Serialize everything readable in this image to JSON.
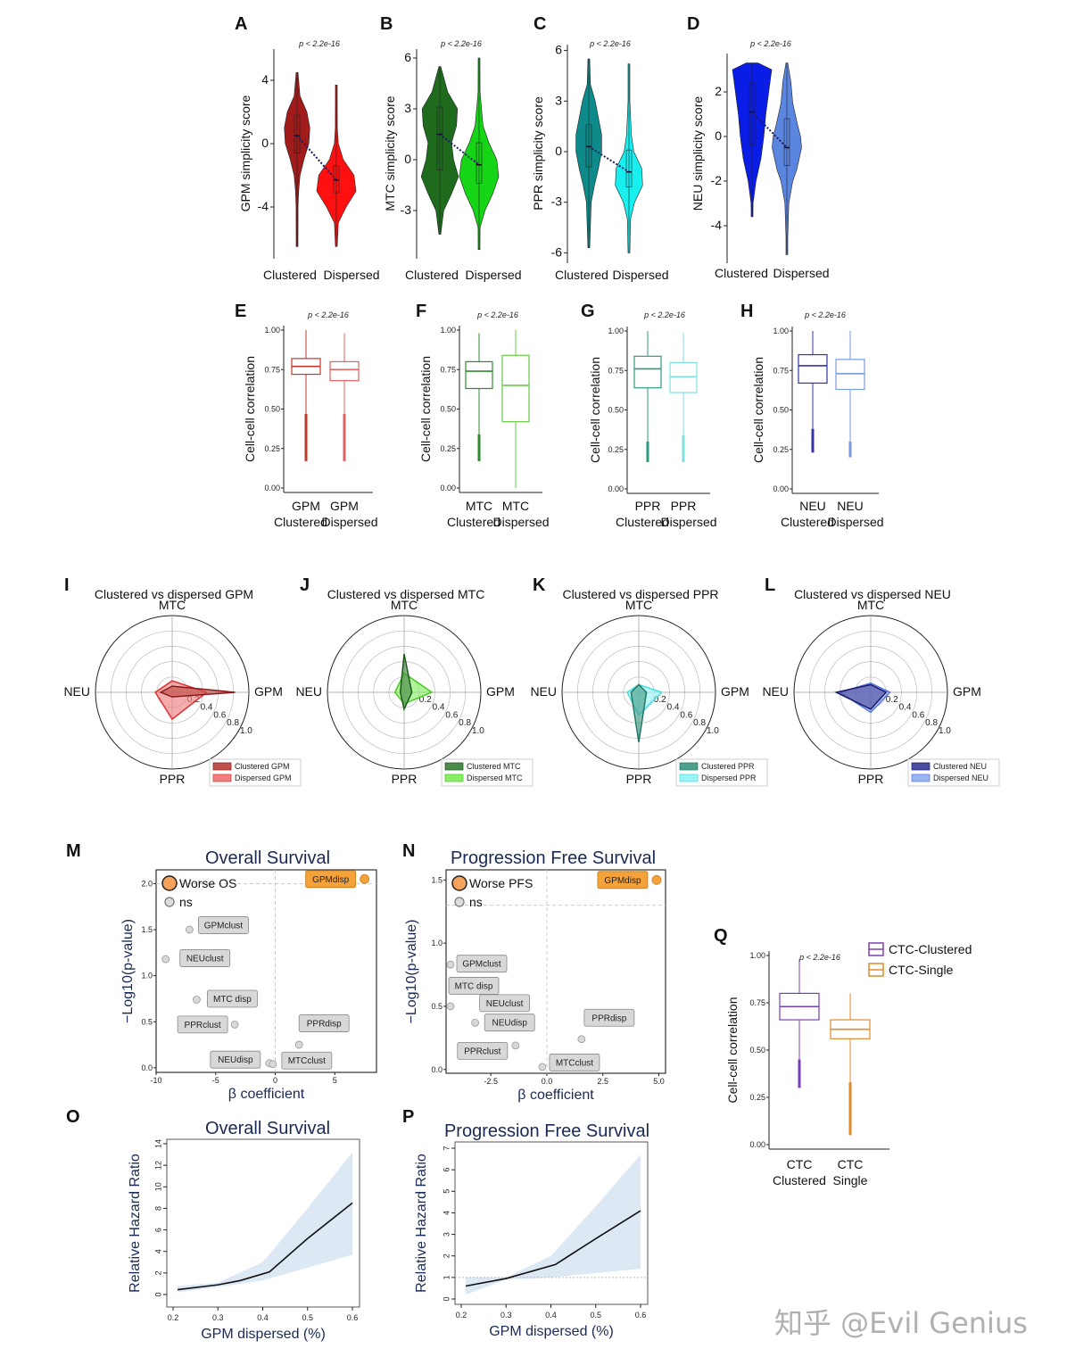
{
  "chart_data": [
    {
      "panel": "A",
      "type": "violin",
      "p_label": "p < 2.2e-16",
      "ylabel": "GPM simplicity score",
      "yticks": [
        4,
        0,
        -4
      ],
      "categories": [
        "Clustered",
        "Dispersed"
      ],
      "groups": [
        {
          "name": "Clustered",
          "color": "#a11b1b",
          "median": 0.5,
          "q1": -0.6,
          "q3": 1.8,
          "density": [
            [
              4.5,
              0
            ],
            [
              3,
              0.15
            ],
            [
              2,
              0.5
            ],
            [
              1,
              0.65
            ],
            [
              0,
              0.6
            ],
            [
              -1,
              0.35
            ],
            [
              -2,
              0.15
            ],
            [
              -3,
              0.08
            ],
            [
              -4,
              0.05
            ],
            [
              -6.5,
              0.02
            ]
          ]
        },
        {
          "name": "Dispersed",
          "color": "#ff1010",
          "median": -2.3,
          "q1": -3.1,
          "q3": -1.4,
          "density": [
            [
              3.7,
              0
            ],
            [
              1,
              0.05
            ],
            [
              0,
              0.1
            ],
            [
              -1,
              0.35
            ],
            [
              -2,
              0.9
            ],
            [
              -3,
              1.0
            ],
            [
              -4,
              0.5
            ],
            [
              -5,
              0.1
            ],
            [
              -6.5,
              0.02
            ]
          ]
        }
      ]
    },
    {
      "panel": "B",
      "type": "violin",
      "p_label": "p < 2.2e-16",
      "ylabel": "MTC simplicity score",
      "yticks": [
        6,
        3,
        0,
        -3
      ],
      "categories": [
        "Clustered",
        "Dispersed"
      ],
      "groups": [
        {
          "name": "Clustered",
          "color": "#1e6b1e",
          "median": 1.5,
          "q1": -0.6,
          "q3": 3.1,
          "density": [
            [
              5.5,
              0
            ],
            [
              4,
              0.4
            ],
            [
              3,
              0.9
            ],
            [
              2,
              0.85
            ],
            [
              1,
              0.6
            ],
            [
              0,
              0.7
            ],
            [
              -1,
              0.95
            ],
            [
              -2,
              0.6
            ],
            [
              -3,
              0.2
            ],
            [
              -4.4,
              0
            ]
          ]
        },
        {
          "name": "Dispersed",
          "color": "#16d416",
          "median": -0.3,
          "q1": -1.4,
          "q3": 1.0,
          "density": [
            [
              6,
              0
            ],
            [
              4,
              0.05
            ],
            [
              2,
              0.2
            ],
            [
              1,
              0.5
            ],
            [
              0,
              0.9
            ],
            [
              -1,
              1.0
            ],
            [
              -2,
              0.7
            ],
            [
              -3,
              0.3
            ],
            [
              -4,
              0.05
            ],
            [
              -5.3,
              0
            ]
          ]
        }
      ]
    },
    {
      "panel": "C",
      "type": "violin",
      "p_label": "p < 2.2e-16",
      "ylabel": "PPR simplicity score",
      "yticks": [
        6,
        3,
        0,
        -3,
        -6
      ],
      "categories": [
        "Clustered",
        "Dispersed"
      ],
      "groups": [
        {
          "name": "Clustered",
          "color": "#0e8a8a",
          "median": 0.3,
          "q1": -0.9,
          "q3": 1.6,
          "density": [
            [
              5.5,
              0
            ],
            [
              4,
              0.1
            ],
            [
              3,
              0.4
            ],
            [
              1,
              0.8
            ],
            [
              0,
              0.8
            ],
            [
              -1,
              0.6
            ],
            [
              -2,
              0.35
            ],
            [
              -3,
              0.15
            ],
            [
              -5.7,
              0.02
            ]
          ]
        },
        {
          "name": "Dispersed",
          "color": "#18f0f0",
          "median": -1.2,
          "q1": -2.1,
          "q3": 0.1,
          "density": [
            [
              5.2,
              0
            ],
            [
              3,
              0.05
            ],
            [
              1,
              0.15
            ],
            [
              0,
              0.3
            ],
            [
              -1,
              0.8
            ],
            [
              -2,
              0.85
            ],
            [
              -3,
              0.35
            ],
            [
              -4,
              0.1
            ],
            [
              -6,
              0.02
            ]
          ]
        }
      ]
    },
    {
      "panel": "D",
      "type": "violin",
      "p_label": "p < 2.2e-16",
      "ylabel": "NEU simplicity score",
      "yticks": [
        2,
        0,
        -2,
        -4
      ],
      "categories": [
        "Clustered",
        "Dispersed"
      ],
      "groups": [
        {
          "name": "Clustered",
          "color": "#0a1de6",
          "median": 1.1,
          "q1": -0.4,
          "q3": 2.4,
          "density": [
            [
              3.3,
              0.3
            ],
            [
              3,
              1.0
            ],
            [
              2,
              0.85
            ],
            [
              1,
              0.7
            ],
            [
              0,
              0.6
            ],
            [
              -1,
              0.45
            ],
            [
              -2,
              0.2
            ],
            [
              -3,
              0.05
            ],
            [
              -3.6,
              0
            ]
          ]
        },
        {
          "name": "Dispersed",
          "color": "#5b86e0",
          "median": -0.5,
          "q1": -1.3,
          "q3": 0.8,
          "density": [
            [
              3.3,
              0
            ],
            [
              2.5,
              0.2
            ],
            [
              1.5,
              0.3
            ],
            [
              0.5,
              0.55
            ],
            [
              0,
              0.7
            ],
            [
              -0.5,
              0.75
            ],
            [
              -1.5,
              0.5
            ],
            [
              -2,
              0.3
            ],
            [
              -3,
              0.1
            ],
            [
              -4.5,
              0.03
            ],
            [
              -5.3,
              0
            ]
          ]
        }
      ]
    },
    {
      "panel": "E",
      "type": "box",
      "p_label": "p < 2.2e-16",
      "ylabel": "Cell-cell correlation",
      "yticks": [
        "1.00",
        "0.75",
        "0.50",
        "0.25",
        "0.00"
      ],
      "ylim": [
        0,
        1
      ],
      "xlabels": [
        "GPM",
        "GPM"
      ],
      "xsub": [
        "Clustered",
        "Dispersed"
      ],
      "boxes": [
        {
          "color": "#c0392b",
          "q1": 0.72,
          "median": 0.77,
          "q3": 0.82,
          "lo": 0.47,
          "hi": 1.0,
          "outlier_min": 0.17
        },
        {
          "color": "#e06060",
          "q1": 0.68,
          "median": 0.75,
          "q3": 0.8,
          "lo": 0.47,
          "hi": 0.98,
          "outlier_min": 0.17
        }
      ]
    },
    {
      "panel": "F",
      "type": "box",
      "p_label": "p < 2.2e-16",
      "ylabel": "Cell-cell correlation",
      "yticks": [
        "1.00",
        "0.75",
        "0.50",
        "0.25",
        "0.00"
      ],
      "ylim": [
        0,
        1
      ],
      "xlabels": [
        "MTC",
        "MTC"
      ],
      "xsub": [
        "Clustered",
        "Dispersed"
      ],
      "boxes": [
        {
          "color": "#2e8b2e",
          "q1": 0.63,
          "median": 0.74,
          "q3": 0.8,
          "lo": 0.34,
          "hi": 0.98,
          "outlier_min": 0.17
        },
        {
          "color": "#66cc44",
          "q1": 0.42,
          "median": 0.65,
          "q3": 0.84,
          "lo": 0.0,
          "hi": 1.0,
          "outlier_min": null
        }
      ]
    },
    {
      "panel": "G",
      "type": "box",
      "p_label": "p < 2.2e-16",
      "ylabel": "Cell-cell correlation",
      "yticks": [
        "1.00",
        "0.75",
        "0.50",
        "0.25",
        "0.00"
      ],
      "ylim": [
        0,
        1
      ],
      "xlabels": [
        "PPR",
        "PPR"
      ],
      "xsub": [
        "Clustered",
        "Dispersed"
      ],
      "boxes": [
        {
          "color": "#2e9a80",
          "q1": 0.64,
          "median": 0.76,
          "q3": 0.84,
          "lo": 0.3,
          "hi": 1.0,
          "outlier_min": 0.17
        },
        {
          "color": "#7fe0e0",
          "q1": 0.61,
          "median": 0.71,
          "q3": 0.8,
          "lo": 0.34,
          "hi": 0.99,
          "outlier_min": 0.17
        }
      ]
    },
    {
      "panel": "H",
      "type": "box",
      "p_label": "p < 2.2e-16",
      "ylabel": "Cell-cell correlation",
      "yticks": [
        "1.00",
        "0.75",
        "0.50",
        "0.25",
        "0.00"
      ],
      "ylim": [
        0,
        1
      ],
      "xlabels": [
        "NEU",
        "NEU"
      ],
      "xsub": [
        "Clustered",
        "Dispersed"
      ],
      "boxes": [
        {
          "color": "#3333aa",
          "q1": 0.67,
          "median": 0.78,
          "q3": 0.85,
          "lo": 0.38,
          "hi": 1.0,
          "outlier_min": 0.23
        },
        {
          "color": "#7a9ae0",
          "q1": 0.63,
          "median": 0.73,
          "q3": 0.82,
          "lo": 0.3,
          "hi": 1.0,
          "outlier_min": 0.2
        }
      ]
    },
    {
      "panel": "I",
      "type": "radar",
      "title": "Clustered vs dispersed GPM",
      "axes": [
        "MTC",
        "GPM",
        "PPR",
        "NEU"
      ],
      "rings": [
        "0.2",
        "0.4",
        "0.6",
        "0.8",
        "1.0"
      ],
      "series": [
        {
          "name": "Clustered GPM",
          "color": "#8b1a1a",
          "fill": "#c0504d",
          "values": [
            0.08,
            0.82,
            0.06,
            0.15
          ]
        },
        {
          "name": "Dispersed GPM",
          "color": "#e03030",
          "fill": "#f08080",
          "values": [
            0.15,
            0.45,
            0.35,
            0.22
          ]
        }
      ]
    },
    {
      "panel": "J",
      "type": "radar",
      "title": "Clustered vs dispersed MTC",
      "axes": [
        "MTC",
        "GPM",
        "PPR",
        "NEU"
      ],
      "rings": [
        "0.2",
        "0.4",
        "0.6",
        "0.8",
        "1.0"
      ],
      "series": [
        {
          "name": "Clustered MTC",
          "color": "#1e5a1e",
          "fill": "#4a8a4a",
          "values": [
            0.5,
            0.1,
            0.22,
            0.05
          ]
        },
        {
          "name": "Dispersed MTC",
          "color": "#44cc22",
          "fill": "#88ee66",
          "values": [
            0.25,
            0.36,
            0.15,
            0.12
          ]
        }
      ]
    },
    {
      "panel": "K",
      "type": "radar",
      "title": "Clustered vs dispersed PPR",
      "axes": [
        "MTC",
        "GPM",
        "PPR",
        "NEU"
      ],
      "rings": [
        "0.2",
        "0.4",
        "0.6",
        "0.8",
        "1.0"
      ],
      "series": [
        {
          "name": "Clustered PPR",
          "color": "#1f7a6a",
          "fill": "#4aa08a",
          "values": [
            0.1,
            0.1,
            0.65,
            0.1
          ]
        },
        {
          "name": "Dispersed PPR",
          "color": "#44dddd",
          "fill": "#99f5f5",
          "values": [
            0.1,
            0.3,
            0.3,
            0.15
          ]
        }
      ]
    },
    {
      "panel": "L",
      "type": "radar",
      "title": "Clustered vs dispersed NEU",
      "axes": [
        "MTC",
        "GPM",
        "PPR",
        "NEU"
      ],
      "rings": [
        "0.2",
        "0.4",
        "0.6",
        "0.8",
        "1.0"
      ],
      "series": [
        {
          "name": "Clustered NEU",
          "color": "#1a1a6e",
          "fill": "#4a4aa0",
          "values": [
            0.1,
            0.2,
            0.22,
            0.45
          ]
        },
        {
          "name": "Dispersed NEU",
          "color": "#5577dd",
          "fill": "#99b5f0",
          "values": [
            0.12,
            0.25,
            0.26,
            0.4
          ]
        }
      ]
    },
    {
      "panel": "M",
      "type": "scatter",
      "title": "Overall Survival",
      "xlabel": "β coefficient",
      "ylabel": "−Log10(p-value)",
      "xticks": [
        "-10",
        "-5",
        "0",
        "5"
      ],
      "yticks": [
        "0.0",
        "0.5",
        "1.0",
        "1.5",
        "2.0"
      ],
      "xlim": [
        -10,
        8.5
      ],
      "ylim": [
        -0.05,
        2.15
      ],
      "threshold": 2.0,
      "legend": [
        "Worse OS",
        "ns"
      ],
      "points": [
        {
          "label": "GPMdisp",
          "x": 7.5,
          "y": 2.05,
          "sig": true
        },
        {
          "label": "GPMclust",
          "x": -7.2,
          "y": 1.5,
          "sig": false
        },
        {
          "label": "NEUclust",
          "x": -9.2,
          "y": 1.18,
          "sig": false
        },
        {
          "label": "MTC disp",
          "x": -6.6,
          "y": 0.74,
          "sig": false
        },
        {
          "label": "PPRclust",
          "x": -3.4,
          "y": 0.47,
          "sig": false
        },
        {
          "label": "PPRdisp",
          "x": 2.0,
          "y": 0.25,
          "sig": false
        },
        {
          "label": "NEUdisp",
          "x": -0.5,
          "y": 0.05,
          "sig": false
        },
        {
          "label": "MTCclust",
          "x": -0.2,
          "y": 0.04,
          "sig": false
        }
      ]
    },
    {
      "panel": "N",
      "type": "scatter",
      "title": "Progression Free Survival",
      "xlabel": "β coefficient",
      "ylabel": "−Log10(p-value)",
      "xticks": [
        "-2.5",
        "0.0",
        "2.5",
        "5.0"
      ],
      "yticks": [
        "0.0",
        "0.5",
        "1.0",
        "1.5"
      ],
      "xlim": [
        -4.5,
        5.3
      ],
      "ylim": [
        -0.03,
        1.58
      ],
      "threshold": 1.3,
      "legend": [
        "Worse PFS",
        "ns"
      ],
      "points": [
        {
          "label": "GPMdisp",
          "x": 4.9,
          "y": 1.5,
          "sig": true
        },
        {
          "label": "GPMclust",
          "x": -4.3,
          "y": 0.83,
          "sig": false
        },
        {
          "label": "MTC disp",
          "x": -4.3,
          "y": 0.5,
          "sig": false
        },
        {
          "label": "NEUclust",
          "x": -3.2,
          "y": 0.37,
          "sig": false
        },
        {
          "label": "NEUdisp",
          "x": -2.3,
          "y": 0.35,
          "sig": false
        },
        {
          "label": "PPRclust",
          "x": -1.4,
          "y": 0.19,
          "sig": false
        },
        {
          "label": "PPRdisp",
          "x": 1.55,
          "y": 0.24,
          "sig": false
        },
        {
          "label": "MTCclust",
          "x": -0.2,
          "y": 0.02,
          "sig": false
        }
      ]
    },
    {
      "panel": "O",
      "type": "line",
      "title": "Overall Survival",
      "xlabel": "GPM dispersed (%)",
      "ylabel": "Relative Hazard Ratio",
      "xticks": [
        "0.2",
        "0.3",
        "0.4",
        "0.5",
        "0.6"
      ],
      "yticks": [
        "0",
        "2",
        "4",
        "6",
        "8",
        "10",
        "12",
        "14"
      ],
      "xlim": [
        0.2,
        0.6
      ],
      "ylim": [
        0,
        14
      ],
      "x": [
        0.21,
        0.3,
        0.35,
        0.415,
        0.5,
        0.6
      ],
      "y": [
        0.45,
        0.9,
        1.3,
        2.1,
        5.2,
        8.5
      ],
      "ci_x": [
        0.21,
        0.3,
        0.4,
        0.5,
        0.6
      ],
      "ci_low": [
        0.2,
        0.7,
        1.3,
        2.5,
        3.7
      ],
      "ci_high": [
        0.8,
        1.1,
        3.0,
        8.0,
        13.2
      ]
    },
    {
      "panel": "P",
      "type": "line",
      "title": "Progression Free Survival",
      "xlabel": "GPM dispersed (%)",
      "ylabel": "Relative Hazard Ratio",
      "xticks": [
        "0.2",
        "0.3",
        "0.4",
        "0.5",
        "0.6"
      ],
      "yticks": [
        "0",
        "1",
        "2",
        "3",
        "4",
        "5",
        "6",
        "7"
      ],
      "xlim": [
        0.2,
        0.6
      ],
      "ylim": [
        0,
        7
      ],
      "reference": 1,
      "x": [
        0.21,
        0.3,
        0.41,
        0.5,
        0.6
      ],
      "y": [
        0.6,
        0.95,
        1.6,
        2.8,
        4.1
      ],
      "ci_x": [
        0.21,
        0.3,
        0.4,
        0.5,
        0.6
      ],
      "ci_low": [
        0.2,
        0.9,
        1.0,
        1.2,
        1.4
      ],
      "ci_high": [
        1.0,
        1.0,
        2.0,
        4.3,
        6.7
      ]
    },
    {
      "panel": "Q",
      "type": "box",
      "p_label": "p < 2.2e-16",
      "ylabel": "Cell-cell correlation",
      "yticks": [
        "1.00",
        "0.75",
        "0.50",
        "0.25",
        "0.00"
      ],
      "ylim": [
        0,
        1
      ],
      "xlabels": [
        "CTC",
        "CTC"
      ],
      "xsub": [
        "Clustered",
        "Single"
      ],
      "legend": [
        "CTC-Clustered",
        "CTC-Single"
      ],
      "boxes": [
        {
          "color": "#7b3fb5",
          "q1": 0.66,
          "median": 0.73,
          "q3": 0.8,
          "lo": 0.45,
          "hi": 0.98,
          "outlier_min": 0.3
        },
        {
          "color": "#e08a2a",
          "q1": 0.56,
          "median": 0.61,
          "q3": 0.66,
          "lo": 0.33,
          "hi": 0.8,
          "outlier_min": 0.05
        }
      ]
    }
  ],
  "watermark": "知乎 @Evil Genius"
}
